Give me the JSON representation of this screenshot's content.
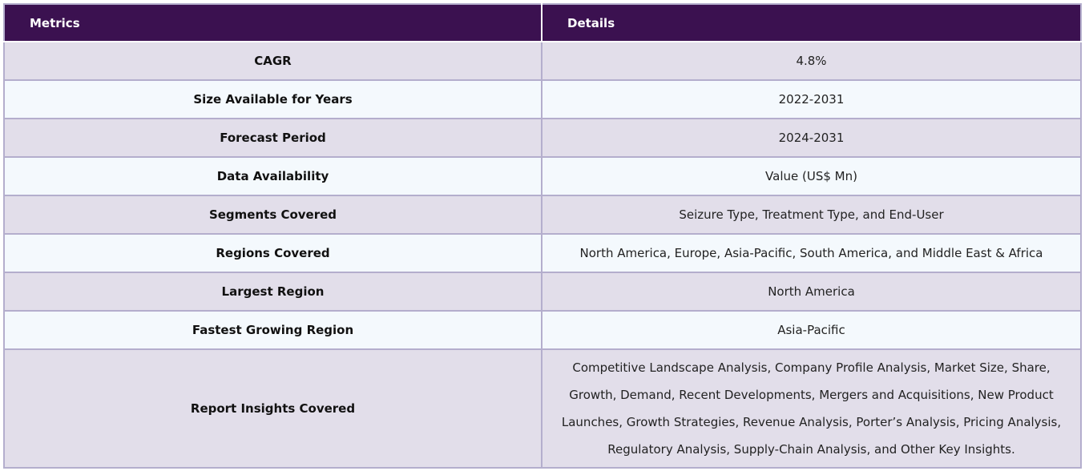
{
  "header": {
    "col1": "Metrics",
    "col2": "Details"
  },
  "rows": [
    {
      "metric": "CAGR",
      "detail": "4.8%"
    },
    {
      "metric": "Size Available for Years",
      "detail": "2022-2031"
    },
    {
      "metric": "Forecast Period",
      "detail": "2024-2031"
    },
    {
      "metric": "Data Availability",
      "detail": "Value (US$ Mn)"
    },
    {
      "metric": "Segments Covered",
      "detail": "Seizure Type, Treatment Type, and End-User"
    },
    {
      "metric": "Regions Covered",
      "detail": "North America, Europe, Asia-Pacific, South America, and Middle East & Africa"
    },
    {
      "metric": "Largest Region",
      "detail": "North America"
    },
    {
      "metric": "Fastest Growing Region",
      "detail": "Asia-Pacific"
    },
    {
      "metric": "Report Insights Covered",
      "detail": "Competitive Landscape Analysis, Company Profile Analysis, Market Size, Share, Growth, Demand, Recent Developments, Mergers and Acquisitions, New Product Launches, Growth Strategies, Revenue Analysis, Porter’s Analysis, Pricing Analysis, Regulatory Analysis, Supply-Chain Analysis, and Other Key Insights."
    }
  ],
  "colors": {
    "header_bg": "#3b1150",
    "row_odd_bg": "#e2deea",
    "row_even_bg": "#f4f9fd",
    "border": "#b4aecd"
  }
}
